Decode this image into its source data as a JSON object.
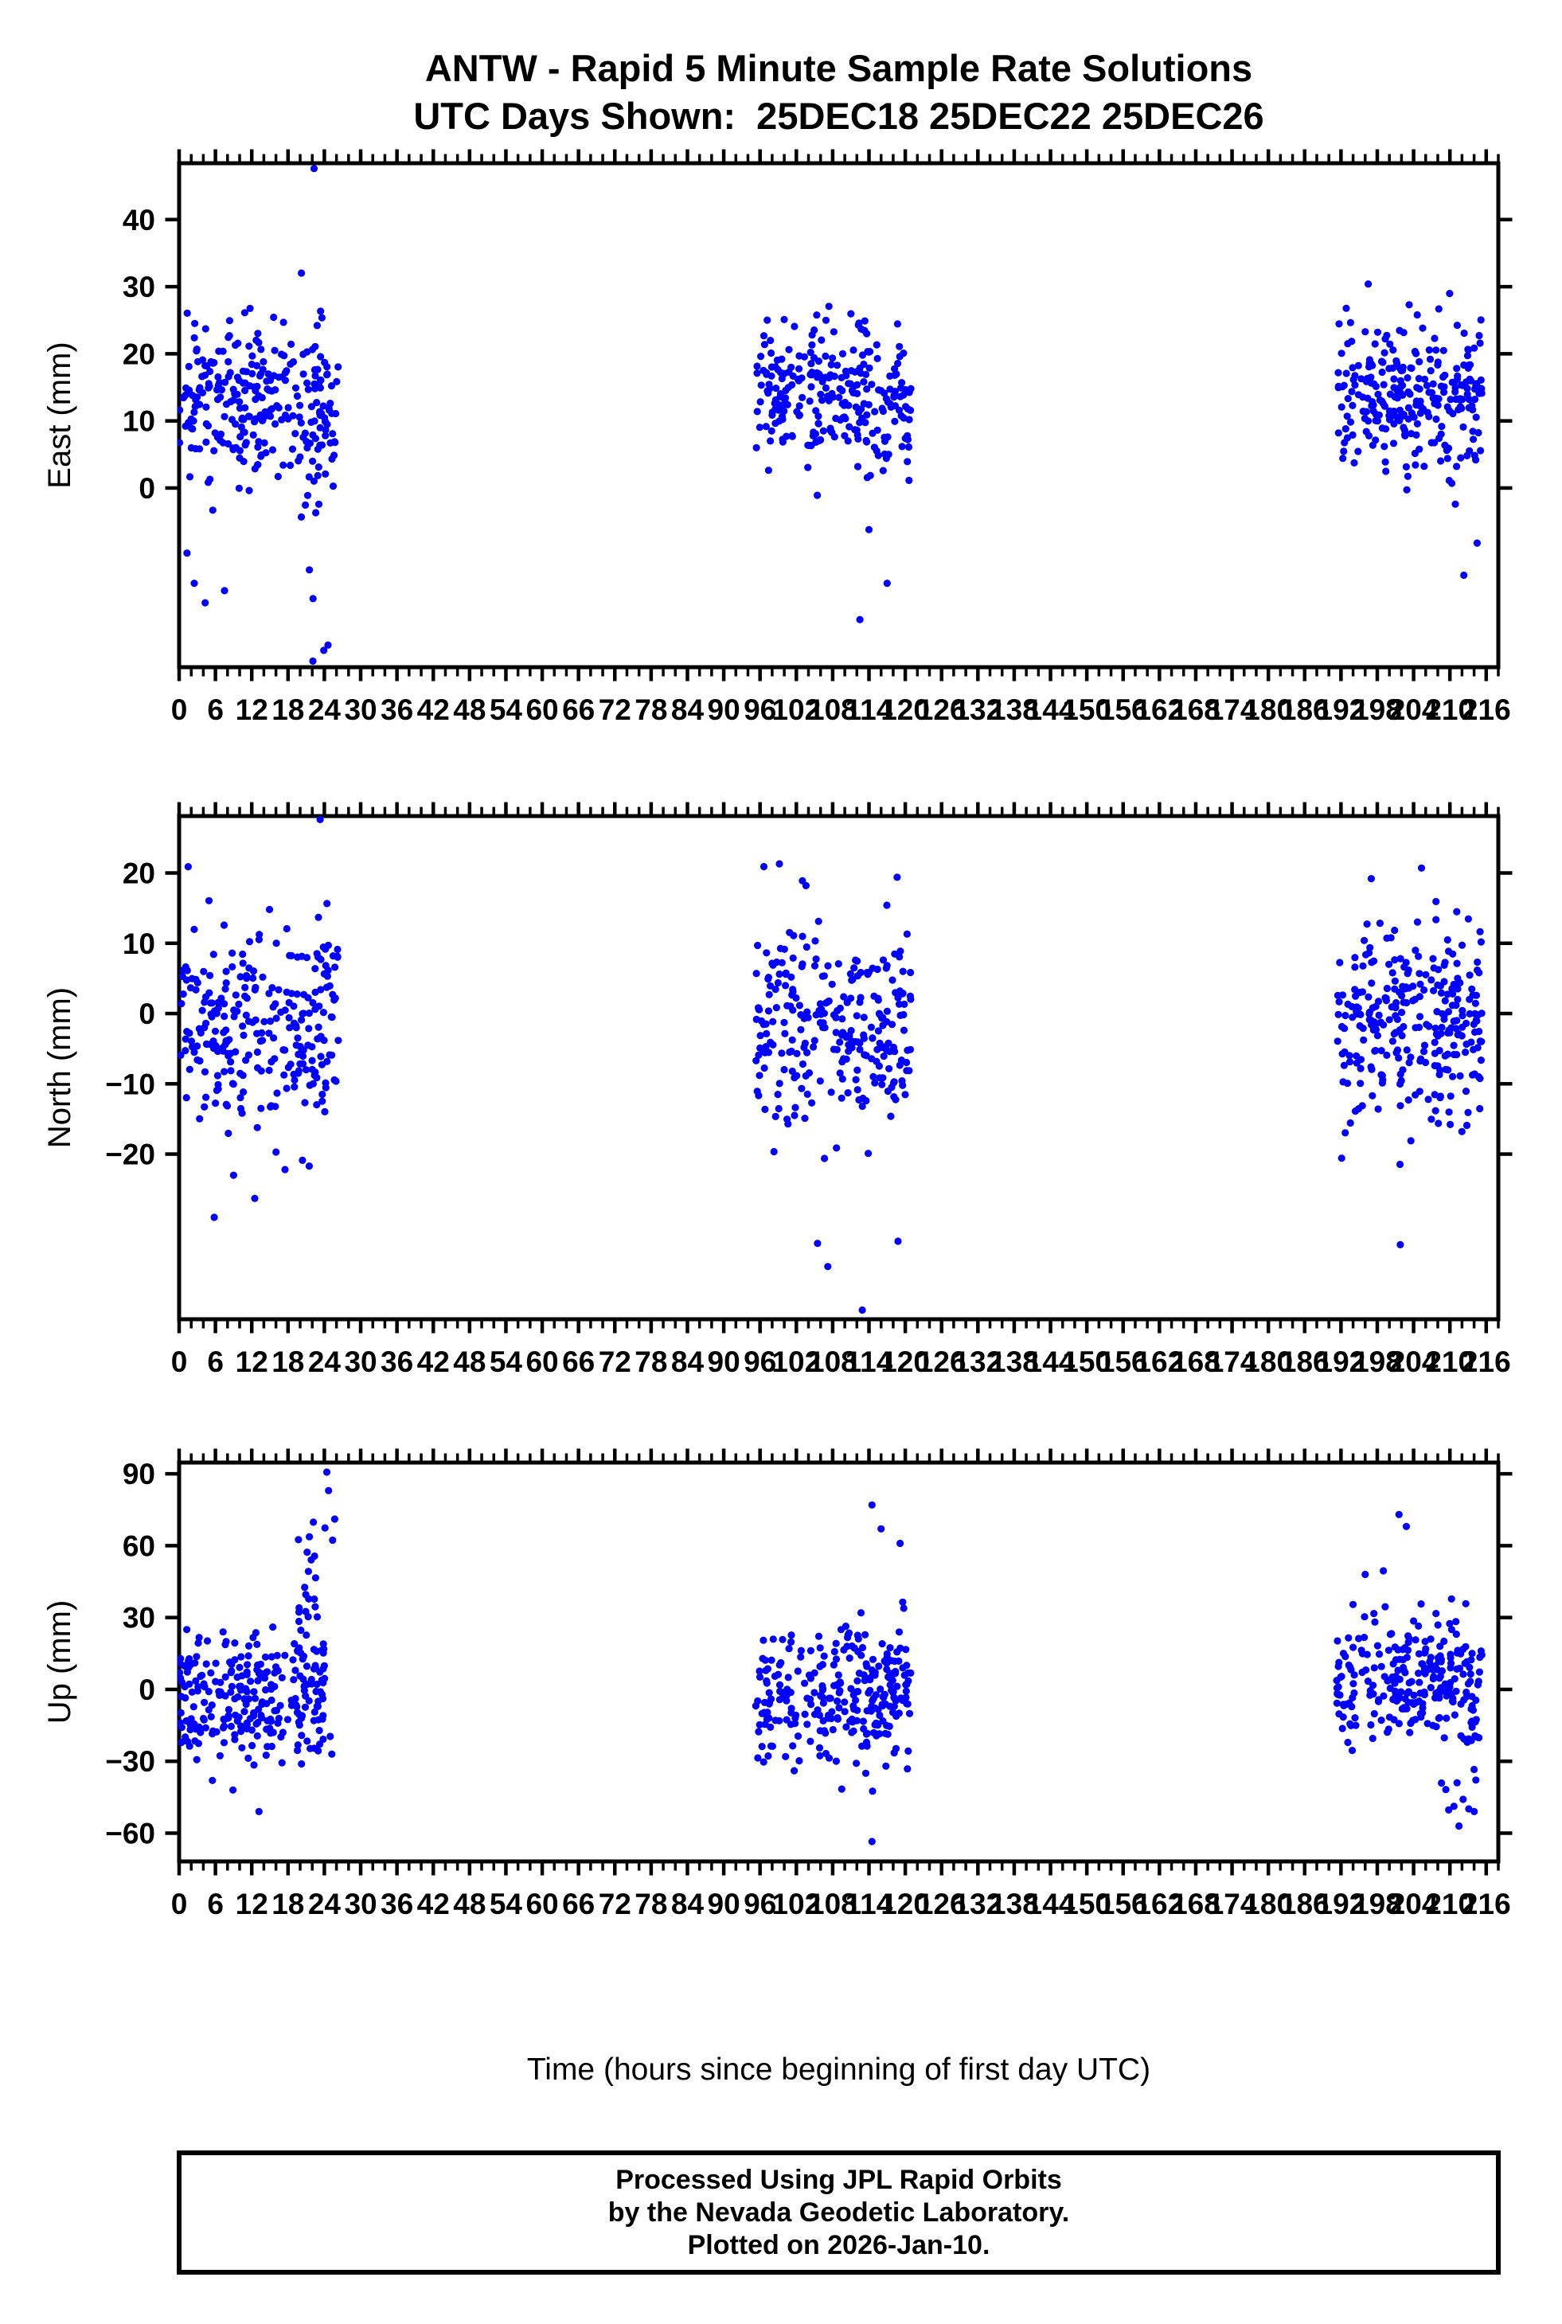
{
  "page": {
    "title_line1": "ANTW - Rapid 5 Minute Sample Rate Solutions",
    "title_line2": "UTC Days Shown:  25DEC18 25DEC22 25DEC26",
    "xlabel": "Time (hours since beginning of first day UTC)",
    "footer_lines": [
      "Processed Using JPL Rapid Orbits",
      "by the Nevada Geodetic Laboratory.",
      "Plotted on 2026-Jan-10."
    ],
    "colors": {
      "marker": "#0202fa",
      "axis": "#000000",
      "background": "#ffffff"
    }
  },
  "chart_data": [
    {
      "type": "scatter",
      "ylabel": "East (mm)",
      "ylim": [
        -26.7,
        48.4
      ],
      "yticks": [
        0,
        10,
        20,
        30,
        40
      ],
      "xlim": [
        0,
        218
      ],
      "xticks": [
        0,
        6,
        12,
        18,
        24,
        30,
        36,
        42,
        48,
        54,
        60,
        66,
        72,
        78,
        84,
        90,
        96,
        102,
        108,
        114,
        120,
        126,
        132,
        138,
        144,
        150,
        156,
        162,
        168,
        174,
        180,
        186,
        192,
        198,
        204,
        210,
        216
      ],
      "xminor_step": 2,
      "marker_color": "#0202fa",
      "marker_radius_px": 4.6,
      "grid": false,
      "legend": null,
      "clusters": [
        {
          "x_range": [
            0,
            26.3
          ],
          "n": 265,
          "mean": 12.5,
          "std": 5.8,
          "min": -18,
          "max": 29
        },
        {
          "x_range": [
            20,
            25.5
          ],
          "n": 16,
          "mean": 8.0,
          "std": 13,
          "min": -26,
          "max": 33
        },
        {
          "x_range": [
            95.3,
            121
          ],
          "n": 265,
          "mean": 13.5,
          "std": 5.2,
          "min": -3,
          "max": 29
        },
        {
          "x_range": [
            191.3,
            215.3
          ],
          "n": 265,
          "mean": 14.0,
          "std": 5.6,
          "min": -1,
          "max": 29
        }
      ],
      "outliers": [
        [
          22.3,
          47.6
        ],
        [
          22.1,
          -25.8
        ],
        [
          23.9,
          -24.2
        ],
        [
          24.6,
          -23.4
        ],
        [
          2.5,
          -14.2
        ],
        [
          7.5,
          -15.3
        ],
        [
          1.3,
          -9.7
        ],
        [
          4.3,
          -17.1
        ],
        [
          112.5,
          -19.6
        ],
        [
          117,
          -14.2
        ],
        [
          114,
          -6.2
        ],
        [
          196.5,
          30.4
        ],
        [
          212.3,
          -13
        ],
        [
          214.5,
          -8.2
        ],
        [
          210.9,
          -2.4
        ]
      ]
    },
    {
      "type": "scatter",
      "ylabel": "North (mm)",
      "ylim": [
        -43.5,
        28.1
      ],
      "yticks": [
        -20,
        -10,
        0,
        10,
        20
      ],
      "xlim": [
        0,
        218
      ],
      "xticks": [
        0,
        6,
        12,
        18,
        24,
        30,
        36,
        42,
        48,
        54,
        60,
        66,
        72,
        78,
        84,
        90,
        96,
        102,
        108,
        114,
        120,
        126,
        132,
        138,
        144,
        150,
        156,
        162,
        168,
        174,
        180,
        186,
        192,
        198,
        204,
        210,
        216
      ],
      "xminor_step": 2,
      "marker_color": "#0202fa",
      "marker_radius_px": 4.6,
      "grid": false,
      "legend": null,
      "clusters": [
        {
          "x_range": [
            0,
            26.3
          ],
          "n": 265,
          "mean": -1.5,
          "std": 7.8,
          "min": -27,
          "max": 21.5
        },
        {
          "x_range": [
            95.3,
            121
          ],
          "n": 265,
          "mean": -1.2,
          "std": 7.0,
          "min": -23,
          "max": 21.3
        },
        {
          "x_range": [
            191.3,
            215.3
          ],
          "n": 265,
          "mean": -0.5,
          "std": 7.2,
          "min": -22,
          "max": 18
        },
        {
          "x_range": [
            205,
            215.3
          ],
          "n": 14,
          "mean": -8.0,
          "std": 9.0,
          "min": -24,
          "max": 12
        }
      ],
      "outliers": [
        [
          23.3,
          27.6
        ],
        [
          1.5,
          20.9
        ],
        [
          5.8,
          -29
        ],
        [
          12.5,
          -26.3
        ],
        [
          9,
          -23
        ],
        [
          17.5,
          -22.2
        ],
        [
          21.5,
          -21.7
        ],
        [
          99.2,
          21.3
        ],
        [
          105.5,
          -32.7
        ],
        [
          107.2,
          -36
        ],
        [
          112.9,
          -42.2
        ],
        [
          118.8,
          -32.4
        ],
        [
          103,
          18.9
        ],
        [
          205.3,
          20.7
        ],
        [
          197,
          19.2
        ],
        [
          201.8,
          -32.9
        ]
      ]
    },
    {
      "type": "scatter",
      "ylabel": "Up (mm)",
      "ylim": [
        -71.8,
        94.7
      ],
      "yticks": [
        -60,
        -30,
        0,
        30,
        60,
        90
      ],
      "xlim": [
        0,
        218
      ],
      "xticks": [
        0,
        6,
        12,
        18,
        24,
        30,
        36,
        42,
        48,
        54,
        60,
        66,
        72,
        78,
        84,
        90,
        96,
        102,
        108,
        114,
        120,
        126,
        132,
        138,
        144,
        150,
        156,
        162,
        168,
        174,
        180,
        186,
        192,
        198,
        204,
        210,
        216
      ],
      "xminor_step": 2,
      "marker_color": "#0202fa",
      "marker_radius_px": 4.6,
      "grid": false,
      "legend": null,
      "clusters": [
        {
          "x_range": [
            0,
            24
          ],
          "n": 250,
          "mean": -3.0,
          "std": 14,
          "min": -40,
          "max": 30
        },
        {
          "x_range": [
            19.5,
            26.5
          ],
          "n": 42,
          "mean": 25.0,
          "std": 27,
          "min": -35,
          "max": 92
        },
        {
          "x_range": [
            95.3,
            121
          ],
          "n": 250,
          "mean": -2.0,
          "std": 14,
          "min": -42,
          "max": 28
        },
        {
          "x_range": [
            112,
            121
          ],
          "n": 28,
          "mean": 5.0,
          "std": 24,
          "min": -55,
          "max": 77
        },
        {
          "x_range": [
            191.3,
            215.3
          ],
          "n": 250,
          "mean": 3.0,
          "std": 13,
          "min": -32,
          "max": 40
        },
        {
          "x_range": [
            208,
            215.3
          ],
          "n": 20,
          "mean": -12.0,
          "std": 22,
          "min": -57,
          "max": 45
        }
      ],
      "outliers": [
        [
          24.4,
          90.7
        ],
        [
          24.7,
          83
        ],
        [
          8.9,
          -42
        ],
        [
          13.2,
          -51
        ],
        [
          5.5,
          -38
        ],
        [
          114.5,
          77
        ],
        [
          114.5,
          -63.5
        ],
        [
          116,
          67
        ],
        [
          201.6,
          73
        ],
        [
          202.8,
          68
        ],
        [
          199,
          49.5
        ],
        [
          211.5,
          -57
        ],
        [
          209.8,
          -50.3
        ],
        [
          196,
          48
        ]
      ]
    }
  ]
}
